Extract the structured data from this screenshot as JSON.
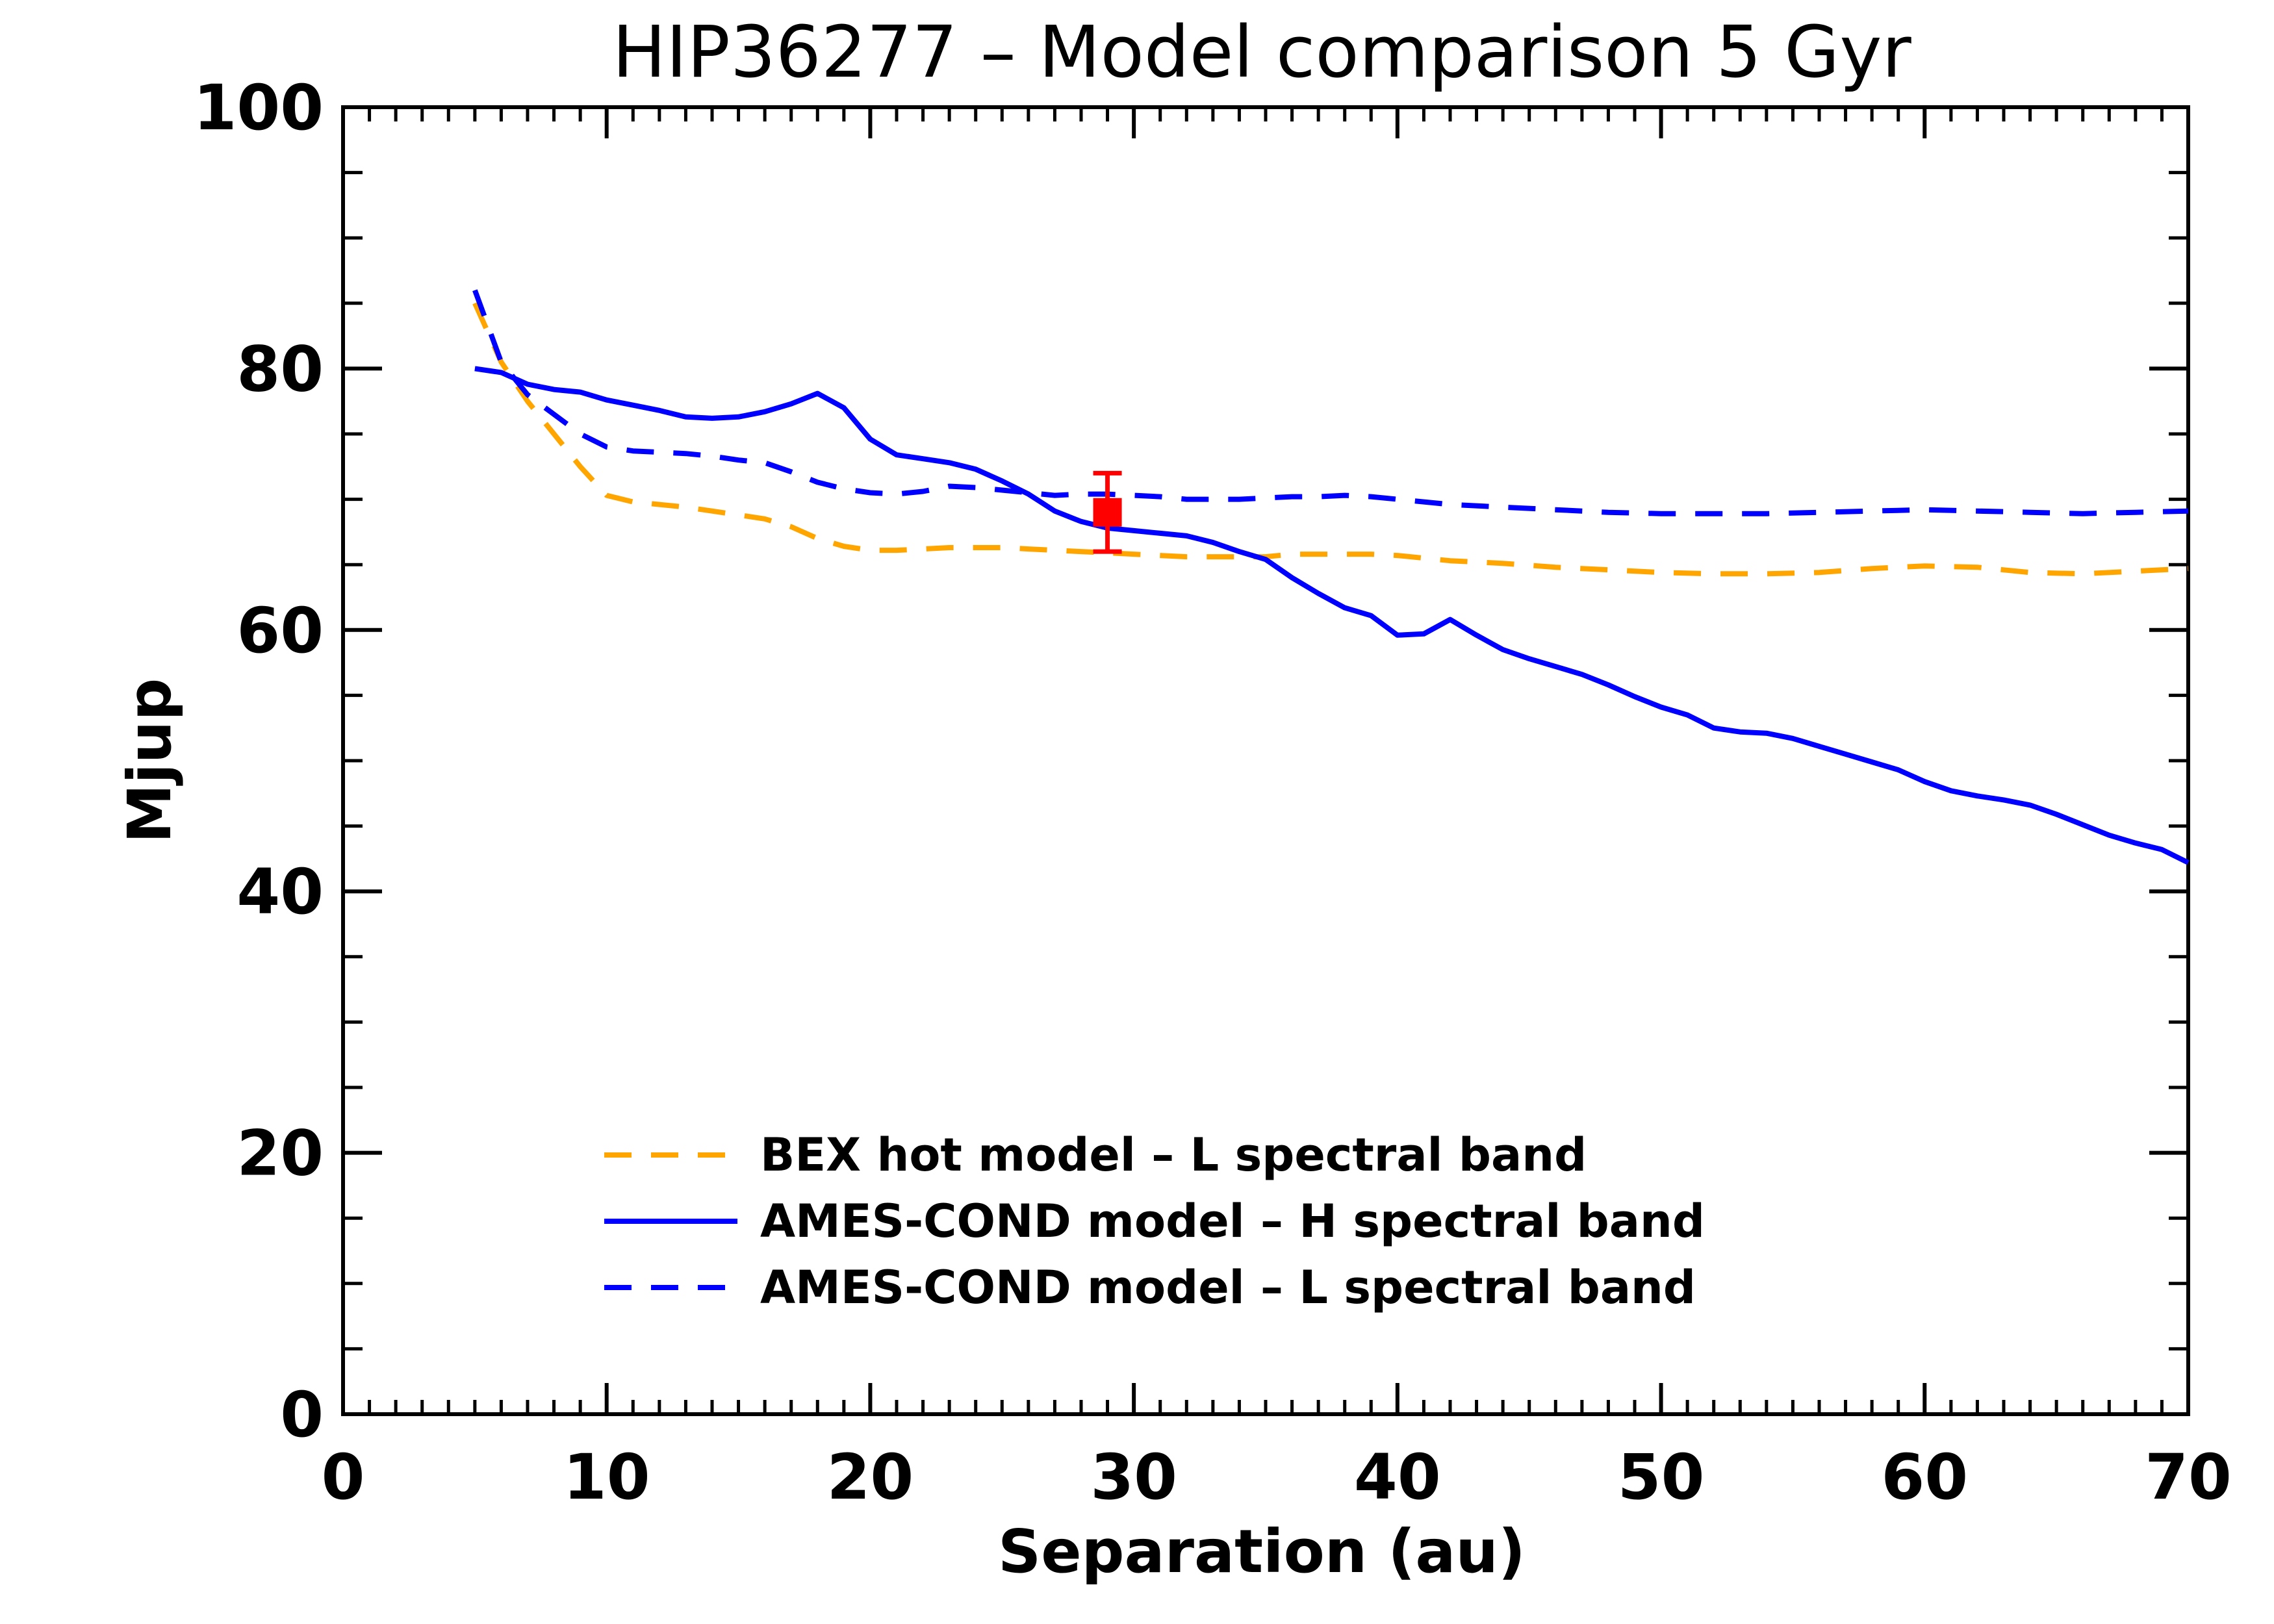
{
  "chart_data": {
    "type": "line",
    "title": "HIP36277 – Model comparison 5 Gyr",
    "xlabel": "Separation (au)",
    "ylabel": "Mjup",
    "xlim": [
      0,
      70
    ],
    "ylim": [
      0,
      100
    ],
    "xticks": [
      0,
      10,
      20,
      30,
      40,
      50,
      60,
      70
    ],
    "yticks": [
      0,
      20,
      40,
      60,
      80,
      100
    ],
    "x_minor_step": 1,
    "y_minor_step": 5,
    "grid": false,
    "legend_position": "bottom-center",
    "series": [
      {
        "name": "BEX hot model – L spectral band",
        "color": "#FFA500",
        "style": "dashed",
        "x": [
          5,
          6,
          7,
          8,
          9,
          10,
          11,
          12,
          13,
          14,
          15,
          16,
          17,
          18,
          19,
          20,
          21,
          22,
          23,
          24,
          25,
          26,
          27,
          28,
          29,
          30,
          31,
          32,
          33,
          34,
          35,
          36,
          37,
          38,
          39,
          40,
          42,
          44,
          46,
          48,
          50,
          52,
          54,
          56,
          58,
          60,
          62,
          64,
          66,
          68,
          70
        ],
        "y": [
          85,
          80.5,
          77.5,
          75,
          72.5,
          70.3,
          69.8,
          69.6,
          69.4,
          69.1,
          68.8,
          68.5,
          67.9,
          67,
          66.4,
          66.1,
          66.1,
          66.2,
          66.3,
          66.3,
          66.3,
          66.2,
          66.1,
          66,
          65.9,
          65.8,
          65.7,
          65.6,
          65.6,
          65.6,
          65.6,
          65.8,
          65.8,
          65.8,
          65.8,
          65.7,
          65.3,
          65.1,
          64.8,
          64.6,
          64.4,
          64.3,
          64.3,
          64.4,
          64.7,
          64.9,
          64.8,
          64.4,
          64.3,
          64.5,
          64.7
        ]
      },
      {
        "name": "AMES-COND model – H spectral band",
        "color": "#0000FF",
        "style": "solid",
        "x": [
          5,
          6,
          7,
          8,
          9,
          10,
          11,
          12,
          13,
          14,
          15,
          16,
          17,
          18,
          19,
          20,
          21,
          22,
          23,
          24,
          25,
          26,
          27,
          28,
          29,
          30,
          31,
          32,
          33,
          34,
          35,
          36,
          37,
          38,
          39,
          40,
          41,
          42,
          43,
          44,
          45,
          46,
          47,
          48,
          49,
          50,
          51,
          52,
          53,
          54,
          55,
          56,
          57,
          58,
          59,
          60,
          61,
          62,
          63,
          64,
          65,
          66,
          67,
          68,
          69,
          70
        ],
        "y": [
          80,
          79.7,
          78.8,
          78.4,
          78.2,
          77.6,
          77.2,
          76.8,
          76.3,
          76.2,
          76.3,
          76.7,
          77.3,
          78.1,
          77,
          74.6,
          73.4,
          73.1,
          72.8,
          72.3,
          71.4,
          70.4,
          69.1,
          68.3,
          67.8,
          67.6,
          67.4,
          67.2,
          66.7,
          66,
          65.4,
          64,
          62.8,
          61.7,
          61.1,
          59.6,
          59.7,
          60.8,
          59.6,
          58.5,
          57.8,
          57.2,
          56.6,
          55.8,
          54.9,
          54.1,
          53.5,
          52.5,
          52.2,
          52.1,
          51.7,
          51.1,
          50.5,
          49.9,
          49.3,
          48.4,
          47.7,
          47.3,
          47,
          46.6,
          45.9,
          45.1,
          44.3,
          43.7,
          43.2,
          42.2
        ]
      },
      {
        "name": "AMES-COND model – L spectral band",
        "color": "#0000FF",
        "style": "dashed",
        "x": [
          5,
          6,
          7,
          8,
          9,
          10,
          11,
          12,
          13,
          14,
          15,
          16,
          17,
          18,
          19,
          20,
          21,
          22,
          23,
          24,
          25,
          26,
          27,
          28,
          29,
          30,
          31,
          32,
          33,
          34,
          35,
          36,
          37,
          38,
          39,
          40,
          42,
          44,
          46,
          48,
          50,
          52,
          54,
          56,
          58,
          60,
          62,
          64,
          66,
          68,
          70
        ],
        "y": [
          86,
          80.5,
          78,
          76.5,
          75,
          74,
          73.7,
          73.6,
          73.5,
          73.3,
          73,
          72.8,
          72.1,
          71.3,
          70.8,
          70.5,
          70.4,
          70.6,
          71,
          70.9,
          70.7,
          70.5,
          70.3,
          70.4,
          70.4,
          70.3,
          70.2,
          70,
          70,
          70,
          70.1,
          70.2,
          70.2,
          70.3,
          70.2,
          70,
          69.6,
          69.4,
          69.2,
          69,
          68.9,
          68.9,
          68.9,
          69,
          69.1,
          69.2,
          69.1,
          69,
          68.9,
          69,
          69.1
        ]
      }
    ],
    "points": [
      {
        "x": 29,
        "y": 69,
        "yerr_low": 66,
        "yerr_high": 72,
        "color": "#FF0000"
      }
    ]
  }
}
